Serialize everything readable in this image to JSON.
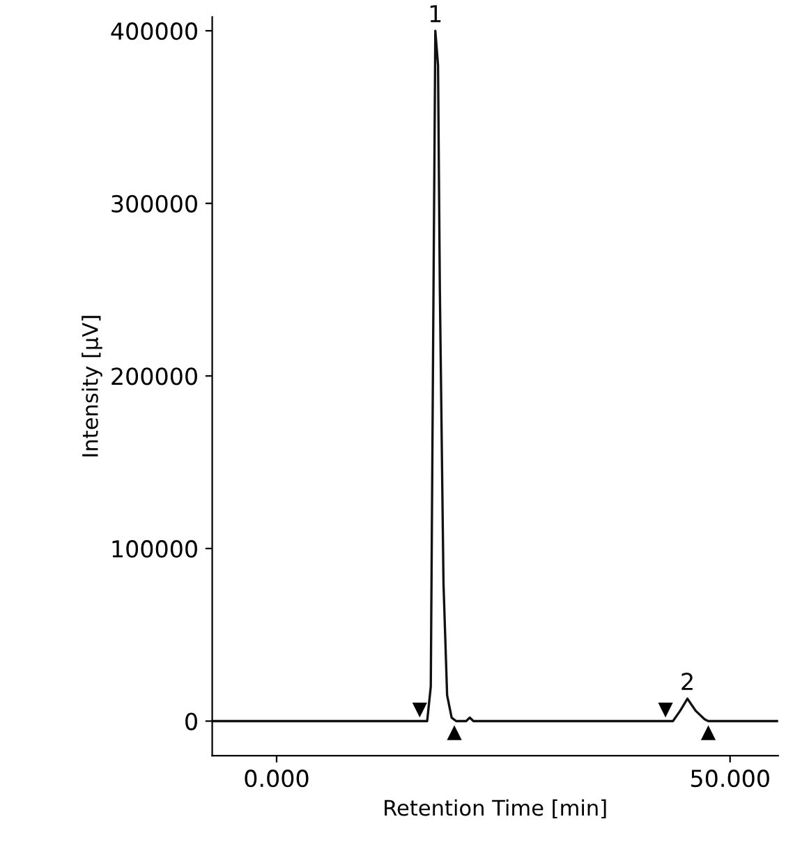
{
  "chart_data": {
    "type": "line",
    "xlabel": "Retention Time [min]",
    "ylabel": "Intensity [µV]",
    "series": [
      {
        "color": "#111111",
        "x": [
          -7.1,
          16.6,
          17.0,
          17.3,
          17.5,
          17.8,
          18.0,
          18.4,
          18.8,
          19.3,
          19.8,
          20.9,
          21.3,
          21.7,
          43.7,
          44.5,
          45.3,
          46.2,
          47.2,
          47.6,
          55.3
        ],
        "values": [
          0,
          0,
          20000,
          250000,
          400000,
          380000,
          250000,
          80000,
          15000,
          2000,
          0,
          0,
          2000,
          0,
          0,
          6000,
          13000,
          6000,
          1000,
          0,
          0
        ]
      }
    ],
    "annotations": [
      {
        "text": "1",
        "x": 17.5,
        "y": 400000
      },
      {
        "text": "2",
        "x": 45.3,
        "y": 13000
      },
      {
        "text": "▼",
        "x": 16.6,
        "y": 0
      },
      {
        "text": "▲",
        "x": 19.6,
        "y": 0
      },
      {
        "text": "▼",
        "x": 43.7,
        "y": 0
      },
      {
        "text": "▲",
        "x": 47.6,
        "y": 0
      }
    ],
    "xlim": [
      -7.1,
      55.3
    ],
    "ylim": [
      -20000,
      408000
    ],
    "xticks": [
      {
        "value": 0,
        "label": "0.000"
      },
      {
        "value": 50,
        "label": "50.000"
      }
    ],
    "yticks": [
      0,
      100000,
      200000,
      300000,
      400000
    ],
    "grid": false,
    "legend": false,
    "line_style": "solid",
    "marker": "none"
  }
}
